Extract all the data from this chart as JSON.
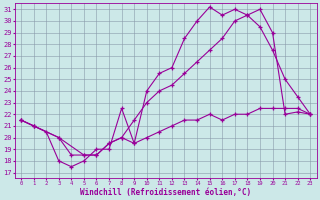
{
  "xlabel": "Windchill (Refroidissement éolien,°C)",
  "bg_color": "#cce8e8",
  "line_color": "#990099",
  "xlim": [
    -0.5,
    23.5
  ],
  "ylim": [
    16.5,
    31.5
  ],
  "xticks": [
    0,
    1,
    2,
    3,
    4,
    5,
    6,
    7,
    8,
    9,
    10,
    11,
    12,
    13,
    14,
    15,
    16,
    17,
    18,
    19,
    20,
    21,
    22,
    23
  ],
  "yticks": [
    17,
    18,
    19,
    20,
    21,
    22,
    23,
    24,
    25,
    26,
    27,
    28,
    29,
    30,
    31
  ],
  "line1_x": [
    0,
    1,
    2,
    3,
    4,
    5,
    6,
    7,
    8,
    9,
    10,
    11,
    12,
    13,
    14,
    15,
    16,
    17,
    18,
    19,
    20,
    21,
    22,
    23
  ],
  "line1_y": [
    21.5,
    21.0,
    20.5,
    18.0,
    17.5,
    18.0,
    19.0,
    19.0,
    22.5,
    19.5,
    24.0,
    25.5,
    26.0,
    28.5,
    30.0,
    31.2,
    30.5,
    31.0,
    30.5,
    29.5,
    27.5,
    25.0,
    23.5,
    22.0
  ],
  "line2_x": [
    0,
    1,
    3,
    4,
    5,
    6,
    7,
    8,
    9,
    10,
    11,
    12,
    13,
    14,
    15,
    16,
    17,
    18,
    19,
    20,
    21,
    22,
    23
  ],
  "line2_y": [
    21.5,
    21.0,
    20.0,
    18.5,
    18.5,
    18.5,
    19.5,
    20.0,
    21.5,
    23.0,
    24.0,
    24.5,
    25.5,
    26.5,
    27.5,
    28.5,
    30.0,
    30.5,
    31.0,
    29.0,
    22.0,
    22.2,
    22.0
  ],
  "line3_x": [
    0,
    1,
    3,
    5,
    6,
    7,
    8,
    9,
    10,
    11,
    12,
    13,
    14,
    15,
    16,
    17,
    18,
    19,
    20,
    21,
    22,
    23
  ],
  "line3_y": [
    21.5,
    21.0,
    20.0,
    18.5,
    18.5,
    19.5,
    20.0,
    19.5,
    20.0,
    20.5,
    21.0,
    21.5,
    21.5,
    22.0,
    21.5,
    22.0,
    22.0,
    22.5,
    22.5,
    22.5,
    22.5,
    22.0
  ],
  "tick_fontsize": 5,
  "xlabel_fontsize": 5.5,
  "lw": 0.8,
  "markersize": 3.5
}
